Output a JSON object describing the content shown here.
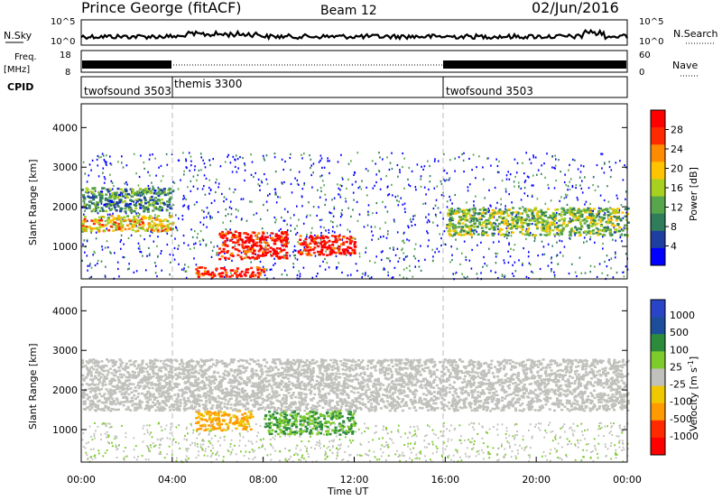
{
  "header": {
    "station": "Prince George (fitACF)",
    "beam": "Beam 12",
    "date": "02/Jun/2016"
  },
  "noise_panel": {
    "left_label": "N.Sky",
    "right_label": "N.Search",
    "left_ticks": [
      "10^5",
      "10^0"
    ],
    "right_ticks": [
      "10^5",
      "10^0"
    ]
  },
  "freq_panel": {
    "left_label": "Freq.",
    "left_unit": "[MHz]",
    "right_label": "Nave",
    "left_ticks": [
      "18",
      "8"
    ],
    "right_ticks": [
      "60",
      "0"
    ]
  },
  "cpid_panel": {
    "label": "CPID",
    "segments": [
      {
        "name": "twofsound 3503",
        "start_hour": 0,
        "end_hour": 4
      },
      {
        "name": "themis 3300",
        "start_hour": 4,
        "end_hour": 16
      },
      {
        "name": "twofsound 3503",
        "start_hour": 16,
        "end_hour": 24
      }
    ]
  },
  "colors": {
    "power_scale": [
      "#0000ff",
      "#1e3fa0",
      "#2f7d5a",
      "#57a64b",
      "#a8d01e",
      "#ffc400",
      "#ff8c00",
      "#ff2a00",
      "#ff0000"
    ],
    "velocity_scale": [
      "#ff0000",
      "#ff2a00",
      "#ff9a00",
      "#f0c800",
      "#c0c0bc",
      "#7ecb2c",
      "#2c8c3c",
      "#1c4e9c",
      "#2a44c8"
    ],
    "gray": "#c0c0bc"
  },
  "chart_data": [
    {
      "type": "heatmap",
      "panel": "power",
      "title": "",
      "xlabel": "",
      "ylabel": "Slant Range [km]",
      "xlim": [
        0,
        24
      ],
      "ylim": [
        180,
        4600
      ],
      "y_ticks": [
        1000,
        2000,
        3000,
        4000
      ],
      "colorbar": {
        "label": "Power [dB]",
        "range": [
          0,
          32
        ],
        "ticks": [
          "4",
          "8",
          "12",
          "16",
          "20",
          "24",
          "28"
        ]
      },
      "description_regions": [
        {
          "range_km": [
            1400,
            1800
          ],
          "hours": [
            0,
            4
          ],
          "power_db": 20
        },
        {
          "range_km": [
            1900,
            2500
          ],
          "hours": [
            0,
            4
          ],
          "power_db": 10
        },
        {
          "range_km": [
            700,
            1400
          ],
          "hours": [
            6,
            9
          ],
          "power_db": 30
        },
        {
          "range_km": [
            800,
            1300
          ],
          "hours": [
            9.5,
            12
          ],
          "power_db": 30
        },
        {
          "range_km": [
            250,
            500
          ],
          "hours": [
            5,
            8
          ],
          "power_db": 30
        },
        {
          "range_km": [
            1300,
            2000
          ],
          "hours": [
            16,
            24
          ],
          "power_db": 14
        }
      ]
    },
    {
      "type": "heatmap",
      "panel": "velocity",
      "title": "",
      "xlabel": "Time UT",
      "ylabel": "Slant Range [km]",
      "xlim": [
        0,
        24
      ],
      "ylim": [
        180,
        4600
      ],
      "x_ticks": [
        "00:00",
        "04:00",
        "08:00",
        "12:00",
        "16:00",
        "20:00",
        "00:00"
      ],
      "y_ticks": [
        1000,
        2000,
        3000,
        4000
      ],
      "colorbar": {
        "label": "Velocity [m s^-1]",
        "ticks": [
          "1000",
          "500",
          "100",
          "25",
          "-25",
          "-100",
          "-500",
          "-1000"
        ]
      },
      "description_regions": [
        {
          "range_km": [
            1000,
            1500
          ],
          "hours": [
            5,
            7.5
          ],
          "velocity": -300
        },
        {
          "range_km": [
            900,
            1500
          ],
          "hours": [
            8,
            12
          ],
          "velocity": 120
        },
        {
          "range_km": [
            1500,
            2800
          ],
          "hours": [
            0,
            24
          ],
          "velocity": 0
        }
      ]
    }
  ]
}
